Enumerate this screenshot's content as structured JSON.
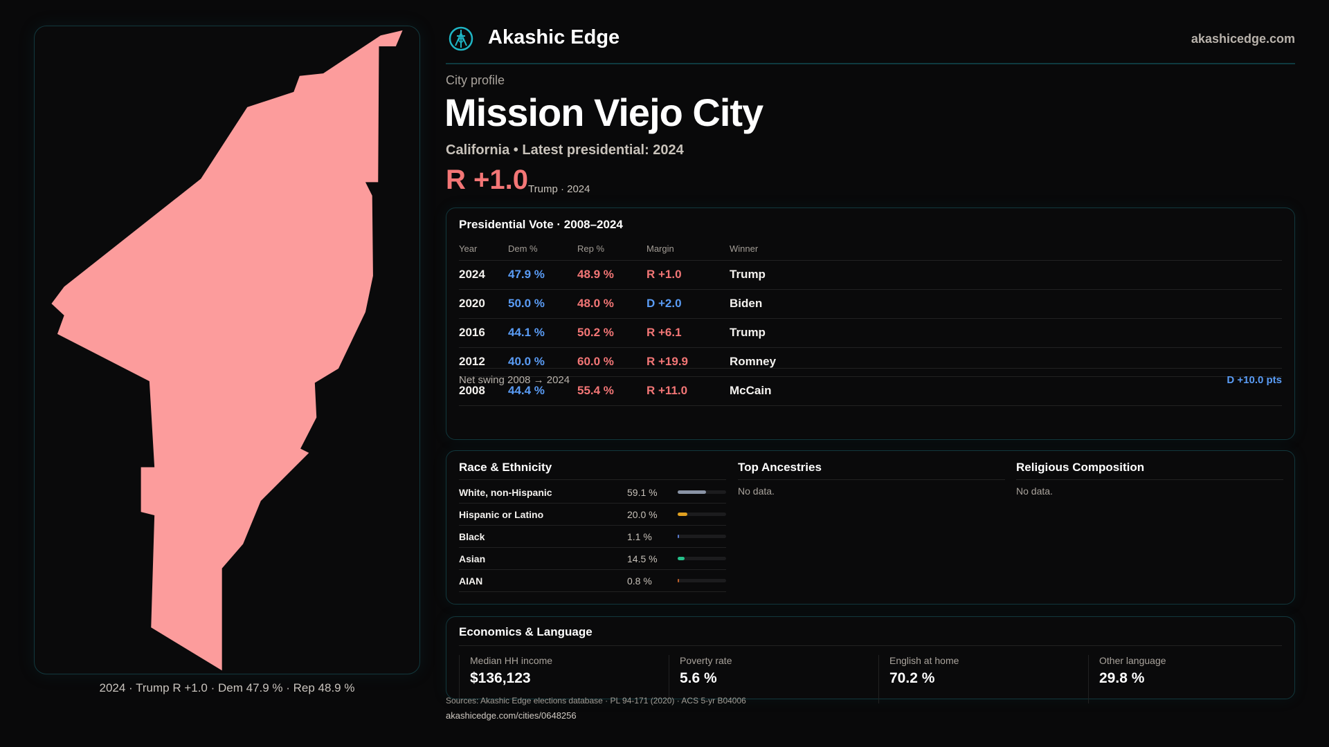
{
  "brand": {
    "name": "Akashic Edge",
    "site": "akashicedge.com",
    "accent": "#1fb5c4"
  },
  "profile": {
    "eyebrow": "City profile",
    "title": "Mission Viejo City",
    "subtitle": "California • Latest presidential: 2024",
    "lead_margin": "R +1.0",
    "lead_note": "Trump · 2024"
  },
  "map": {
    "fill": "#fc9c9c",
    "caption": "2024 · Trump R +1.0 · Dem 47.9 % · Rep 48.9 %"
  },
  "vote": {
    "title": "Presidential Vote · 2008–2024",
    "headers": [
      "Year",
      "Dem %",
      "Rep %",
      "Margin",
      "Winner"
    ],
    "rows": [
      {
        "year": "2024",
        "dem": "47.9 %",
        "rep": "48.9 %",
        "margin": "R +1.0",
        "party": "R",
        "winner": "Trump"
      },
      {
        "year": "2020",
        "dem": "50.0 %",
        "rep": "48.0 %",
        "margin": "D +2.0",
        "party": "D",
        "winner": "Biden"
      },
      {
        "year": "2016",
        "dem": "44.1 %",
        "rep": "50.2 %",
        "margin": "R +6.1",
        "party": "R",
        "winner": "Trump"
      },
      {
        "year": "2012",
        "dem": "40.0 %",
        "rep": "60.0 %",
        "margin": "R +19.9",
        "party": "R",
        "winner": "Romney"
      },
      {
        "year": "2008",
        "dem": "44.4 %",
        "rep": "55.4 %",
        "margin": "R +11.0",
        "party": "R",
        "winner": "McCain"
      }
    ],
    "swing_label": "Net swing 2008 → 2024",
    "swing_value": "D +10.0 pts"
  },
  "race": {
    "title": "Race & Ethnicity",
    "rows": [
      {
        "label": "White, non-Hispanic",
        "pct": "59.1 %",
        "value": 59.1,
        "color": "#8a94a6"
      },
      {
        "label": "Hispanic or Latino",
        "pct": "20.0 %",
        "value": 20.0,
        "color": "#e0a020"
      },
      {
        "label": "Black",
        "pct": "1.1 %",
        "value": 1.1,
        "color": "#5a7bd0"
      },
      {
        "label": "Asian",
        "pct": "14.5 %",
        "value": 14.5,
        "color": "#25c08a"
      },
      {
        "label": "AIAN",
        "pct": "0.8 %",
        "value": 0.8,
        "color": "#c0602a"
      }
    ]
  },
  "ancestries": {
    "title": "Top Ancestries",
    "empty": "No data."
  },
  "religion": {
    "title": "Religious Composition",
    "empty": "No data."
  },
  "econ": {
    "title": "Economics & Language",
    "stats": [
      {
        "label": "Median HH income",
        "value": "$136,123"
      },
      {
        "label": "Poverty rate",
        "value": "5.6 %"
      },
      {
        "label": "English at home",
        "value": "70.2 %"
      },
      {
        "label": "Other language",
        "value": "29.8 %"
      }
    ]
  },
  "footer": {
    "sources": "Sources: Akashic Edge elections database · PL 94-171 (2020) · ACS 5-yr B04006",
    "url": "akashicedge.com/cities/0648256"
  }
}
